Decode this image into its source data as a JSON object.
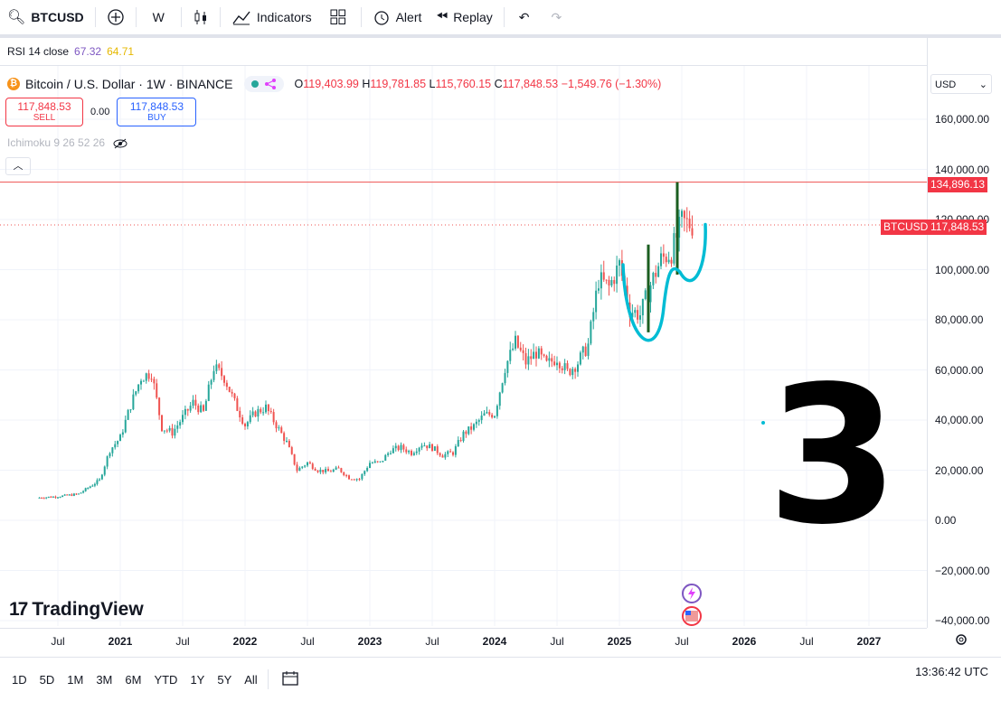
{
  "toolbar": {
    "symbol": "BTCUSD",
    "interval": "W",
    "indicators_label": "Indicators",
    "alert_label": "Alert",
    "replay_label": "Replay"
  },
  "rsi": {
    "label": "RSI 14 close",
    "value1": "67.32",
    "value2": "64.71"
  },
  "legend": {
    "title": "Bitcoin / U.S. Dollar · 1W · BINANCE",
    "open_k": "O",
    "open": "119,403.99",
    "high_k": "H",
    "high": "119,781.85",
    "low_k": "L",
    "low": "115,760.15",
    "close_k": "C",
    "close": "117,848.53",
    "change": "−1,549.76 (−1.30%)"
  },
  "trade": {
    "sell_price": "117,848.53",
    "sell_label": "SELL",
    "spread": "0.00",
    "buy_price": "117,848.53",
    "buy_label": "BUY"
  },
  "ichimoku_label": "Ichimoku 9 26 52 26",
  "currency": "USD",
  "price_labels": {
    "high_line": "134,896.13",
    "symbol_tag": "BTCUSD",
    "last": "117,848.53"
  },
  "annotation_text": "3",
  "logo_text": "TradingView",
  "ranges": [
    "1D",
    "5D",
    "1M",
    "3M",
    "6M",
    "YTD",
    "1Y",
    "5Y",
    "All"
  ],
  "clock": "13:36:42 UTC",
  "colors": {
    "up": "#26a69a",
    "down": "#ef5350",
    "accent": "#2962ff",
    "sell": "#f23645",
    "drawing_green": "#1b5e20",
    "drawing_cyan": "#00bcd4"
  },
  "chart_data": {
    "type": "candlestick",
    "title": "Bitcoin / U.S. Dollar · 1W · BINANCE",
    "ylim": [
      -40000,
      170000
    ],
    "y_ticks": [
      "160,000.00",
      "140,000.00",
      "120,000.00",
      "100,000.00",
      "80,000.00",
      "60,000.00",
      "40,000.00",
      "20,000.00",
      "0.00",
      "−20,000.00",
      "−40,000.00"
    ],
    "x_ticks": [
      "Jul",
      "2021",
      "Jul",
      "2022",
      "Jul",
      "2023",
      "Jul",
      "2024",
      "Jul",
      "2025",
      "Jul",
      "2026",
      "Jul",
      "2027"
    ],
    "horizontal_line": 134896.13,
    "last_price": 117848.53,
    "series": [
      {
        "date": "2020-05",
        "close": 9000
      },
      {
        "date": "2020-07",
        "close": 9500
      },
      {
        "date": "2020-09",
        "close": 10500
      },
      {
        "date": "2020-11",
        "close": 16000
      },
      {
        "date": "2020-12",
        "close": 28000
      },
      {
        "date": "2021-01",
        "close": 33000
      },
      {
        "date": "2021-02",
        "close": 46000
      },
      {
        "date": "2021-03",
        "close": 57000
      },
      {
        "date": "2021-04",
        "close": 59000
      },
      {
        "date": "2021-05",
        "close": 37000
      },
      {
        "date": "2021-06",
        "close": 35000
      },
      {
        "date": "2021-07",
        "close": 41000
      },
      {
        "date": "2021-08",
        "close": 47000
      },
      {
        "date": "2021-09",
        "close": 43000
      },
      {
        "date": "2021-10",
        "close": 61000
      },
      {
        "date": "2021-11",
        "close": 57000
      },
      {
        "date": "2021-12",
        "close": 47000
      },
      {
        "date": "2022-01",
        "close": 38000
      },
      {
        "date": "2022-02",
        "close": 43000
      },
      {
        "date": "2022-03",
        "close": 45000
      },
      {
        "date": "2022-04",
        "close": 38000
      },
      {
        "date": "2022-05",
        "close": 31000
      },
      {
        "date": "2022-06",
        "close": 20000
      },
      {
        "date": "2022-07",
        "close": 23000
      },
      {
        "date": "2022-08",
        "close": 20000
      },
      {
        "date": "2022-09",
        "close": 19500
      },
      {
        "date": "2022-10",
        "close": 20500
      },
      {
        "date": "2022-11",
        "close": 17000
      },
      {
        "date": "2022-12",
        "close": 16500
      },
      {
        "date": "2023-01",
        "close": 23000
      },
      {
        "date": "2023-02",
        "close": 23000
      },
      {
        "date": "2023-03",
        "close": 28000
      },
      {
        "date": "2023-04",
        "close": 29000
      },
      {
        "date": "2023-05",
        "close": 27000
      },
      {
        "date": "2023-06",
        "close": 30500
      },
      {
        "date": "2023-07",
        "close": 29000
      },
      {
        "date": "2023-08",
        "close": 26000
      },
      {
        "date": "2023-09",
        "close": 27000
      },
      {
        "date": "2023-10",
        "close": 34500
      },
      {
        "date": "2023-11",
        "close": 37500
      },
      {
        "date": "2023-12",
        "close": 42000
      },
      {
        "date": "2024-01",
        "close": 42500
      },
      {
        "date": "2024-02",
        "close": 61000
      },
      {
        "date": "2024-03",
        "close": 71000
      },
      {
        "date": "2024-04",
        "close": 63000
      },
      {
        "date": "2024-05",
        "close": 67000
      },
      {
        "date": "2024-06",
        "close": 62000
      },
      {
        "date": "2024-07",
        "close": 65000
      },
      {
        "date": "2024-08",
        "close": 59000
      },
      {
        "date": "2024-09",
        "close": 63000
      },
      {
        "date": "2024-10",
        "close": 70000
      },
      {
        "date": "2024-11",
        "close": 96000
      },
      {
        "date": "2024-12",
        "close": 93000
      },
      {
        "date": "2025-01",
        "close": 102000
      },
      {
        "date": "2025-02",
        "close": 84000
      },
      {
        "date": "2025-03",
        "close": 82000
      },
      {
        "date": "2025-04",
        "close": 94000
      },
      {
        "date": "2025-05",
        "close": 104000
      },
      {
        "date": "2025-06",
        "close": 107000
      },
      {
        "date": "2025-07",
        "close": 119000
      },
      {
        "date": "2025-08",
        "close": 117848
      }
    ]
  }
}
